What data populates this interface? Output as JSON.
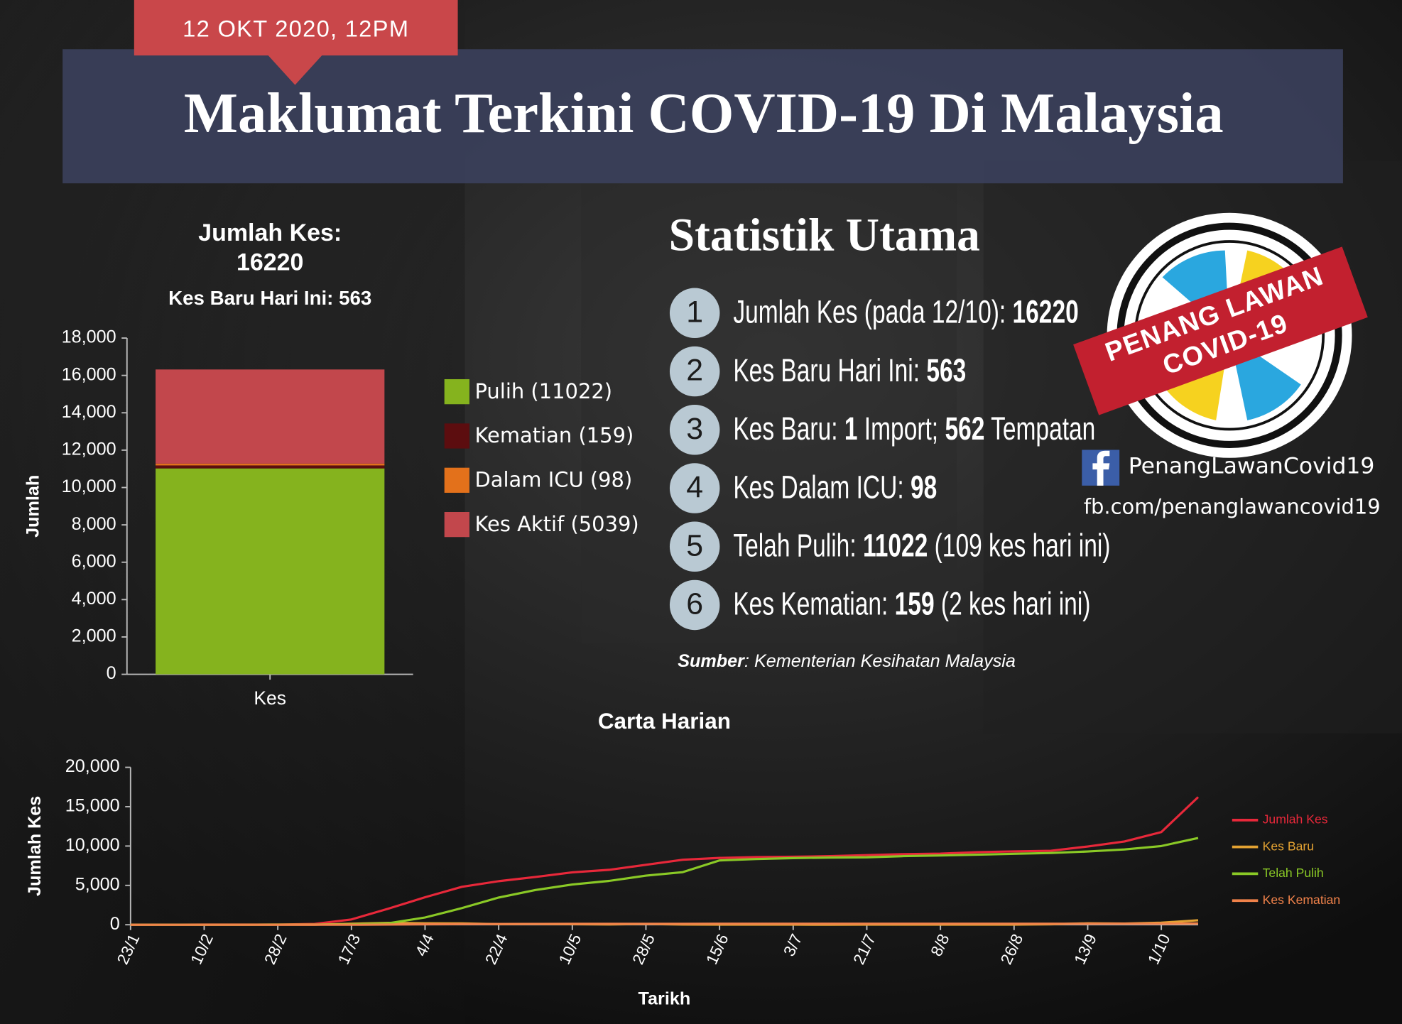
{
  "header": {
    "date": "12 OKT 2020, 12PM",
    "title": "Maklumat Terkini COVID-19 Di Malaysia"
  },
  "stats": {
    "title": "Statistik Utama",
    "items": [
      {
        "number": "1",
        "parts": [
          "Jumlah Kes (pada 12/10): ",
          "16220"
        ]
      },
      {
        "number": "2",
        "parts": [
          "Kes Baru Hari Ini: ",
          "563"
        ]
      },
      {
        "number": "3",
        "parts": [
          "Kes Baru: ",
          "1",
          " Import; ",
          "562",
          " Tempatan"
        ]
      },
      {
        "number": "4",
        "parts": [
          "Kes Dalam ICU: ",
          "98"
        ]
      },
      {
        "number": "5",
        "parts": [
          "Telah Pulih: ",
          "11022",
          " (109 kes hari ini)"
        ]
      },
      {
        "number": "6",
        "parts": [
          "Kes Kematian: ",
          "159",
          " (2 kes hari ini)"
        ]
      }
    ],
    "source_label": "Sumber",
    "source_text": ": Kementerian Kesihatan Malaysia"
  },
  "logo": {
    "line1": "PENANG LAWAN",
    "line2": "COVID-19"
  },
  "social": {
    "name": "PenangLawanCovid19",
    "url": "fb.com/penanglawancovid19"
  },
  "chart_data": [
    {
      "type": "bar",
      "stacked": true,
      "title": "Jumlah Kes:",
      "title_value": "16220",
      "subtitle": "Kes Baru Hari Ini: 563",
      "y_label": "Jumlah",
      "categories": [
        "Kes"
      ],
      "series": [
        {
          "name": "Pulih (11022)",
          "color": "#85b31e",
          "values": [
            11022
          ]
        },
        {
          "name": "Kematian (159)",
          "color": "#5c0d0f",
          "values": [
            159
          ]
        },
        {
          "name": "Dalam ICU (98)",
          "color": "#e3711b",
          "values": [
            98
          ]
        },
        {
          "name": "Kes Aktif (5039)",
          "color": "#c2474c",
          "values": [
            5039
          ]
        }
      ],
      "ylim": [
        0,
        18000
      ],
      "yticks": [
        0,
        {
          "value": 2000,
          "label": "2,000"
        },
        {
          "value": 4000,
          "label": "4,000"
        },
        {
          "value": 6000,
          "label": "6,000"
        },
        {
          "value": 8000,
          "label": "8,000"
        },
        {
          "value": 10000,
          "label": "10,000"
        },
        {
          "value": 12000,
          "label": "12,000"
        },
        {
          "value": 14000,
          "label": "14,000"
        },
        {
          "value": 16000,
          "label": "16,000"
        },
        {
          "value": 18000,
          "label": "18,000"
        }
      ],
      "legend": "right"
    },
    {
      "type": "line",
      "title": "Carta Harian",
      "x_label": "Tarikh",
      "y_label": "Jumlah Kes",
      "categories": [
        "23/1",
        null,
        "10/2",
        null,
        "28/2",
        null,
        "17/3",
        null,
        "4/4",
        null,
        "22/4",
        null,
        "10/5",
        null,
        "28/5",
        null,
        "15/6",
        null,
        "3/7",
        null,
        "21/7",
        null,
        "8/8",
        null,
        "26/8",
        null,
        "13/9",
        null,
        "1/10",
        null
      ],
      "series": [
        {
          "name": "Jumlah Kes",
          "color": "#e8283a",
          "values": [
            0,
            8,
            18,
            22,
            25,
            99,
            673,
            2031,
            3483,
            4817,
            5532,
            6071,
            6656,
            6978,
            7619,
            8266,
            8494,
            8596,
            8639,
            8718,
            8840,
            8964,
            9038,
            9212,
            9314,
            9397,
            9946,
            10576,
            11771,
            16220
          ]
        },
        {
          "name": "Kes Baru",
          "color": "#e3a232",
          "values": [
            0,
            0,
            0,
            0,
            0,
            2,
            120,
            235,
            179,
            170,
            71,
            94,
            67,
            37,
            103,
            19,
            7,
            14,
            6,
            2,
            11,
            12,
            7,
            12,
            6,
            62,
            182,
            147,
            260,
            563
          ]
        },
        {
          "name": "Telah Pulih",
          "color": "#8ac926",
          "values": [
            0,
            0,
            0,
            0,
            22,
            24,
            42,
            183,
            915,
            2108,
            3452,
            4413,
            5113,
            5571,
            6236,
            6683,
            8174,
            8351,
            8466,
            8530,
            8573,
            8717,
            8795,
            8899,
            9012,
            9108,
            9303,
            9573,
            9995,
            11022
          ]
        },
        {
          "name": "Kes Kematian",
          "color": "#f0824a",
          "values": [
            0,
            0,
            0,
            0,
            0,
            0,
            0,
            26,
            57,
            82,
            93,
            103,
            109,
            114,
            115,
            118,
            121,
            121,
            121,
            122,
            124,
            125,
            125,
            125,
            128,
            128,
            128,
            133,
            137,
            159
          ]
        }
      ],
      "ylim": [
        0,
        20000
      ],
      "yticks": [
        0,
        {
          "value": 5000,
          "label": "5,000"
        },
        {
          "value": 10000,
          "label": "10,000"
        },
        {
          "value": 15000,
          "label": "15,000"
        },
        {
          "value": 20000,
          "label": "20,000"
        }
      ],
      "legend": "right"
    }
  ]
}
